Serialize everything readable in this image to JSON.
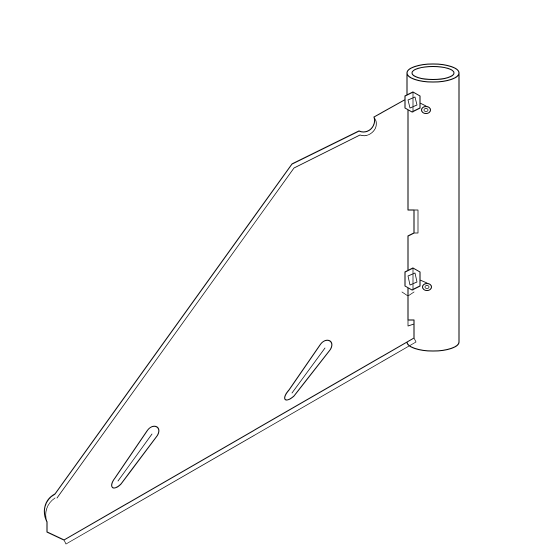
{
  "drawing": {
    "style": "isometric line drawing",
    "line_color": "#000000",
    "background_color": "#ffffff",
    "components": [
      "vertical-pipe",
      "triangular-bracket-plate",
      "pipe-clamp-upper",
      "pipe-clamp-lower"
    ],
    "slot_count": 2,
    "clamp_count": 2
  }
}
